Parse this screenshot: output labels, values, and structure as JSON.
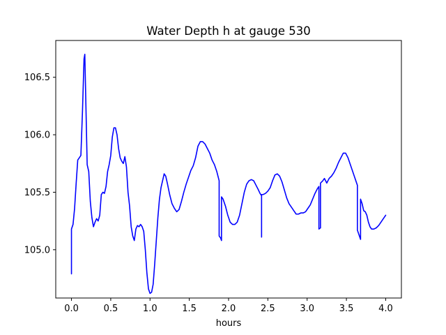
{
  "chart_data": {
    "type": "line",
    "title": "Water Depth h at gauge 530",
    "xlabel": "hours",
    "ylabel": "",
    "xlim": [
      -0.2,
      4.2
    ],
    "ylim": [
      104.58,
      106.82
    ],
    "xticks": [
      0.0,
      0.5,
      1.0,
      1.5,
      2.0,
      2.5,
      3.0,
      3.5,
      4.0
    ],
    "xtick_labels": [
      "0.0",
      "0.5",
      "1.0",
      "1.5",
      "2.0",
      "2.5",
      "3.0",
      "3.5",
      "4.0"
    ],
    "yticks": [
      105.0,
      105.5,
      106.0,
      106.5
    ],
    "ytick_labels": [
      "105.0",
      "105.5",
      "106.0",
      "106.5"
    ],
    "grid": false,
    "series": [
      {
        "color": "#0000ff",
        "x": [
          0.0,
          0.0,
          0.02,
          0.04,
          0.06,
          0.08,
          0.1,
          0.12,
          0.14,
          0.16,
          0.17,
          0.18,
          0.2,
          0.22,
          0.24,
          0.26,
          0.28,
          0.3,
          0.32,
          0.34,
          0.36,
          0.38,
          0.4,
          0.42,
          0.44,
          0.46,
          0.48,
          0.5,
          0.52,
          0.54,
          0.56,
          0.58,
          0.6,
          0.62,
          0.64,
          0.66,
          0.68,
          0.7,
          0.72,
          0.74,
          0.76,
          0.78,
          0.8,
          0.82,
          0.84,
          0.86,
          0.88,
          0.9,
          0.92,
          0.94,
          0.96,
          0.98,
          1.0,
          1.02,
          1.04,
          1.06,
          1.08,
          1.1,
          1.12,
          1.14,
          1.16,
          1.18,
          1.2,
          1.22,
          1.25,
          1.28,
          1.31,
          1.34,
          1.37,
          1.4,
          1.43,
          1.46,
          1.49,
          1.52,
          1.55,
          1.58,
          1.61,
          1.64,
          1.67,
          1.7,
          1.73,
          1.76,
          1.79,
          1.82,
          1.85,
          1.88,
          1.88,
          1.9,
          1.91,
          1.91,
          1.93,
          1.96,
          1.99,
          2.02,
          2.05,
          2.08,
          2.11,
          2.14,
          2.17,
          2.2,
          2.23,
          2.26,
          2.29,
          2.32,
          2.35,
          2.38,
          2.4,
          2.42,
          2.42,
          2.42,
          2.44,
          2.47,
          2.5,
          2.53,
          2.56,
          2.59,
          2.62,
          2.65,
          2.68,
          2.71,
          2.74,
          2.77,
          2.8,
          2.83,
          2.86,
          2.89,
          2.92,
          2.95,
          2.98,
          3.01,
          3.04,
          3.07,
          3.1,
          3.13,
          3.15,
          3.15,
          3.17,
          3.17,
          3.2,
          3.22,
          3.25,
          3.28,
          3.31,
          3.34,
          3.37,
          3.4,
          3.43,
          3.46,
          3.49,
          3.52,
          3.55,
          3.58,
          3.61,
          3.64,
          3.64,
          3.66,
          3.68,
          3.68,
          3.7,
          3.72,
          3.74,
          3.76,
          3.78,
          3.8,
          3.82,
          3.85,
          3.88,
          3.91,
          3.94,
          3.97,
          4.0
        ],
        "y": [
          104.79,
          105.18,
          105.22,
          105.36,
          105.58,
          105.78,
          105.8,
          105.82,
          106.2,
          106.66,
          106.7,
          106.38,
          105.74,
          105.68,
          105.42,
          105.28,
          105.2,
          105.24,
          105.27,
          105.25,
          105.3,
          105.48,
          105.5,
          105.49,
          105.55,
          105.68,
          105.74,
          105.82,
          105.98,
          106.06,
          106.06,
          106.0,
          105.88,
          105.8,
          105.77,
          105.75,
          105.81,
          105.72,
          105.5,
          105.38,
          105.2,
          105.12,
          105.08,
          105.18,
          105.21,
          105.2,
          105.22,
          105.2,
          105.16,
          105.0,
          104.8,
          104.66,
          104.62,
          104.63,
          104.7,
          104.88,
          105.08,
          105.28,
          105.44,
          105.54,
          105.6,
          105.66,
          105.64,
          105.58,
          105.48,
          105.4,
          105.36,
          105.33,
          105.35,
          105.42,
          105.5,
          105.57,
          105.63,
          105.69,
          105.73,
          105.8,
          105.9,
          105.94,
          105.94,
          105.92,
          105.88,
          105.84,
          105.78,
          105.74,
          105.68,
          105.6,
          105.12,
          105.1,
          105.08,
          105.46,
          105.44,
          105.38,
          105.3,
          105.24,
          105.22,
          105.22,
          105.24,
          105.3,
          105.4,
          105.5,
          105.57,
          105.6,
          105.61,
          105.6,
          105.56,
          105.52,
          105.49,
          105.47,
          105.11,
          105.48,
          105.48,
          105.49,
          105.51,
          105.54,
          105.6,
          105.65,
          105.66,
          105.64,
          105.59,
          105.52,
          105.45,
          105.4,
          105.37,
          105.34,
          105.31,
          105.31,
          105.32,
          105.32,
          105.33,
          105.36,
          105.39,
          105.44,
          105.49,
          105.53,
          105.55,
          105.18,
          105.19,
          105.58,
          105.6,
          105.62,
          105.58,
          105.62,
          105.64,
          105.67,
          105.71,
          105.76,
          105.8,
          105.84,
          105.84,
          105.8,
          105.74,
          105.68,
          105.62,
          105.56,
          105.17,
          105.13,
          105.09,
          105.44,
          105.4,
          105.34,
          105.33,
          105.3,
          105.24,
          105.2,
          105.18,
          105.18,
          105.19,
          105.21,
          105.24,
          105.27,
          105.3
        ]
      }
    ]
  }
}
